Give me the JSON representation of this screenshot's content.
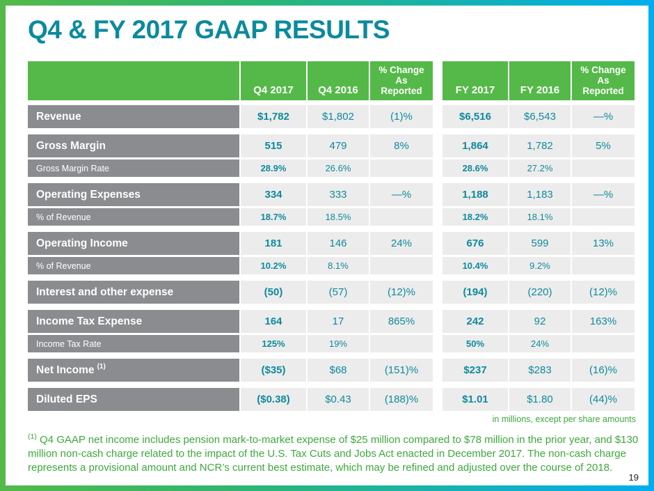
{
  "slide": {
    "title": "Q4 & FY 2017 GAAP RESULTS",
    "page_number": "19",
    "units_note": "in millions, except per share amounts",
    "footnote_marker": "(1)",
    "footnote_text": " Q4 GAAP net income includes pension mark-to-market expense of $25 million compared to $78 million in the prior year, and $130 million non-cash charge related to the impact of the U.S. Tax Cuts and Jobs Act enacted in December 2017. The non-cash charge represents a provisional amount and NCR’s current best estimate, which may be refined and adjusted over the course of 2018."
  },
  "colors": {
    "accent_teal": "#0B8A9D",
    "header_green": "#54B948",
    "row_label_gray": "#8A8C8F",
    "cell_gray": "#ECECEC",
    "note_green": "#3CA83C",
    "border_gradient_start": "#54B948",
    "border_gradient_end": "#00AEEF"
  },
  "table": {
    "headers": {
      "q4_2017": "Q4 2017",
      "q4_2016": "Q4 2016",
      "fy_2017": "FY 2017",
      "fy_2016": "FY 2016",
      "change_line1": "% Change",
      "change_line2": "As",
      "change_line3": "Reported"
    },
    "rows": [
      {
        "label": "Revenue",
        "q4_2017": "$1,782",
        "q4_2016": "$1,802",
        "q4_change": "(1)%",
        "fy_2017": "$6,516",
        "fy_2016": "$6,543",
        "fy_change": "—%"
      },
      {
        "label": "Gross Margin",
        "q4_2017": "515",
        "q4_2016": "479",
        "q4_change": "8%",
        "fy_2017": "1,864",
        "fy_2016": "1,782",
        "fy_change": "5%"
      },
      {
        "label": "Gross Margin Rate",
        "q4_2017": "28.9%",
        "q4_2016": "26.6%",
        "q4_change": "",
        "fy_2017": "28.6%",
        "fy_2016": "27.2%",
        "fy_change": ""
      },
      {
        "label": "Operating Expenses",
        "q4_2017": "334",
        "q4_2016": "333",
        "q4_change": "—%",
        "fy_2017": "1,188",
        "fy_2016": "1,183",
        "fy_change": "—%"
      },
      {
        "label": "% of Revenue",
        "q4_2017": "18.7%",
        "q4_2016": "18.5%",
        "q4_change": "",
        "fy_2017": "18.2%",
        "fy_2016": "18.1%",
        "fy_change": ""
      },
      {
        "label": "Operating Income",
        "q4_2017": "181",
        "q4_2016": "146",
        "q4_change": "24%",
        "fy_2017": "676",
        "fy_2016": "599",
        "fy_change": "13%"
      },
      {
        "label": "% of Revenue",
        "q4_2017": "10.2%",
        "q4_2016": "8.1%",
        "q4_change": "",
        "fy_2017": "10.4%",
        "fy_2016": "9.2%",
        "fy_change": ""
      },
      {
        "label": "Interest and other expense",
        "q4_2017": "(50)",
        "q4_2016": "(57)",
        "q4_change": "(12)%",
        "fy_2017": "(194)",
        "fy_2016": "(220)",
        "fy_change": "(12)%"
      },
      {
        "label": "Income Tax Expense",
        "q4_2017": "164",
        "q4_2016": "17",
        "q4_change": "865%",
        "fy_2017": "242",
        "fy_2016": "92",
        "fy_change": "163%"
      },
      {
        "label": "Income Tax Rate",
        "q4_2017": "125%",
        "q4_2016": "19%",
        "q4_change": "",
        "fy_2017": "50%",
        "fy_2016": "24%",
        "fy_change": ""
      },
      {
        "label": "Net Income",
        "label_sup": "(1)",
        "q4_2017": "($35)",
        "q4_2016": "$68",
        "q4_change": "(151)%",
        "fy_2017": "$237",
        "fy_2016": "$283",
        "fy_change": "(16)%"
      },
      {
        "label": "Diluted EPS",
        "q4_2017": "($0.38)",
        "q4_2016": "$0.43",
        "q4_change": "(188)%",
        "fy_2017": "$1.01",
        "fy_2016": "$1.80",
        "fy_change": "(44)%"
      }
    ]
  }
}
